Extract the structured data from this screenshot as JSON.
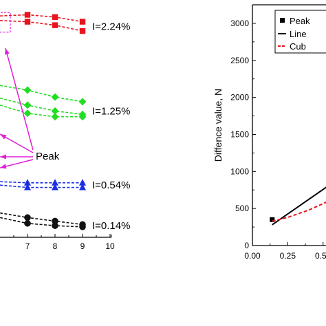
{
  "chart_data": [
    {
      "type": "line",
      "x_ticks": [
        "7",
        "8",
        "9",
        "10"
      ],
      "xlim": [
        5.8,
        10
      ],
      "ylim": [
        0,
        10
      ],
      "annotation": "Peak",
      "groups": [
        {
          "label": "I=2.24%",
          "color": "#e8141e",
          "marker": "square",
          "series": [
            {
              "x": [
                6,
                7,
                8,
                9
              ],
              "y": [
                9.55,
                9.6,
                9.5,
                9.3
              ]
            },
            {
              "x": [
                6,
                7,
                8,
                9
              ],
              "y": [
                9.35,
                9.3,
                9.15,
                8.9
              ]
            }
          ]
        },
        {
          "label": "I=1.25%",
          "color": "#22dd22",
          "marker": "diamond",
          "series": [
            {
              "x": [
                6,
                7,
                8,
                9
              ],
              "y": [
                6.55,
                6.35,
                6.05,
                5.85
              ]
            },
            {
              "x": [
                6,
                7,
                8,
                9
              ],
              "y": [
                6.0,
                5.7,
                5.45,
                5.3
              ]
            },
            {
              "x": [
                6,
                7,
                8,
                9
              ],
              "y": [
                5.7,
                5.35,
                5.2,
                5.2
              ]
            }
          ]
        },
        {
          "label": "I=0.54%",
          "color": "#1a2ee6",
          "marker": "triangle",
          "series": [
            {
              "x": [
                6,
                7,
                8,
                9
              ],
              "y": [
                2.4,
                2.35,
                2.35,
                2.35
              ]
            },
            {
              "x": [
                6,
                7,
                8,
                9
              ],
              "y": [
                2.25,
                2.15,
                2.15,
                2.15
              ]
            }
          ]
        },
        {
          "label": "I=0.14%",
          "color": "#111111",
          "marker": "circle",
          "series": [
            {
              "x": [
                6,
                7,
                8,
                9
              ],
              "y": [
                1.05,
                0.85,
                0.7,
                0.55
              ]
            },
            {
              "x": [
                6,
                7,
                8,
                9
              ],
              "y": [
                0.85,
                0.6,
                0.5,
                0.45
              ]
            }
          ]
        }
      ]
    },
    {
      "type": "scatter",
      "ylabel": "Diffence value, N",
      "x_ticks": [
        "0.00",
        "0.25",
        "0.50"
      ],
      "y_ticks": [
        "0",
        "500",
        "1000",
        "1500",
        "2000",
        "2500",
        "3000"
      ],
      "xlim": [
        0,
        0.55
      ],
      "ylim": [
        0,
        3250
      ],
      "legend": {
        "placement": "top",
        "entries": [
          "Peak",
          "Line",
          "Cub"
        ]
      },
      "series": [
        {
          "name": "Peak",
          "style": "marker",
          "x": [
            0.14,
            0.54
          ],
          "y": [
            350,
            600
          ]
        },
        {
          "name": "Line",
          "style": "solid",
          "x": [
            0.14,
            0.54
          ],
          "y": [
            280,
            810
          ]
        },
        {
          "name": "Cub",
          "style": "dashed",
          "x": [
            0.14,
            0.25,
            0.4,
            0.54
          ],
          "y": [
            330,
            380,
            480,
            600
          ]
        }
      ]
    }
  ]
}
